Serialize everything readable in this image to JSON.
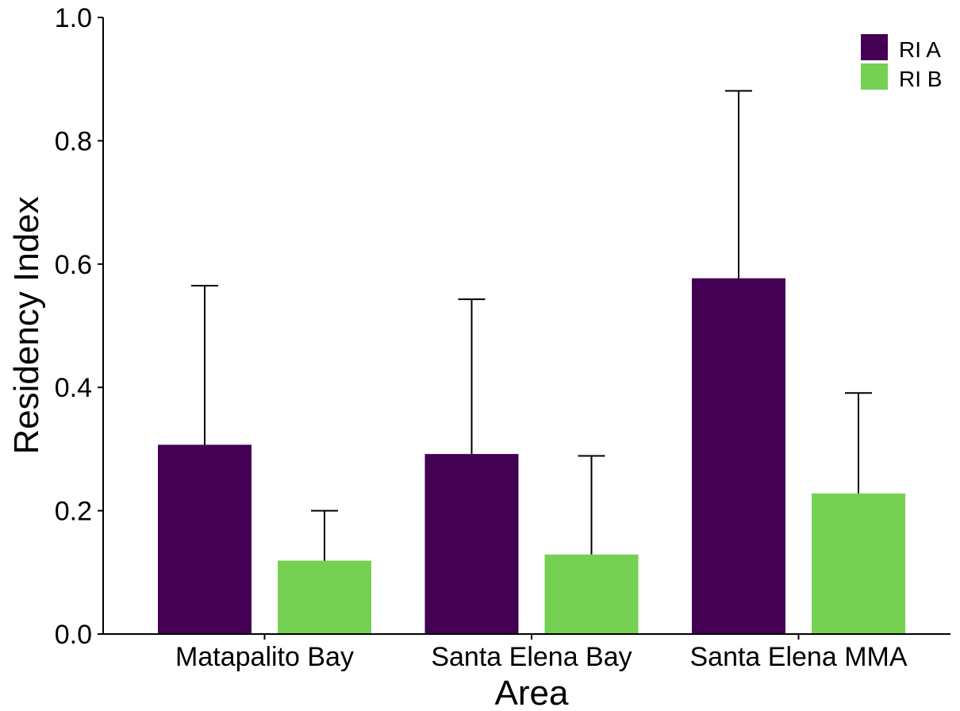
{
  "chart_data": {
    "type": "bar",
    "title": "",
    "xlabel": "Area",
    "ylabel": "Residency Index",
    "categories": [
      "Matapalito Bay",
      "Santa Elena Bay",
      "Santa Elena MMA"
    ],
    "series": [
      {
        "name": "RI A",
        "color": "#440154",
        "values": [
          0.307,
          0.292,
          0.577
        ],
        "error_upper": [
          0.565,
          0.543,
          0.881
        ]
      },
      {
        "name": "RI B",
        "color": "#75d054",
        "values": [
          0.119,
          0.129,
          0.228
        ],
        "error_upper": [
          0.2,
          0.289,
          0.391
        ]
      }
    ],
    "ylim": [
      0,
      1.0
    ],
    "yticks": [
      "0.0",
      "0.2",
      "0.4",
      "0.6",
      "0.8",
      "1.0"
    ],
    "grid": false,
    "legend_position": "top-right"
  }
}
